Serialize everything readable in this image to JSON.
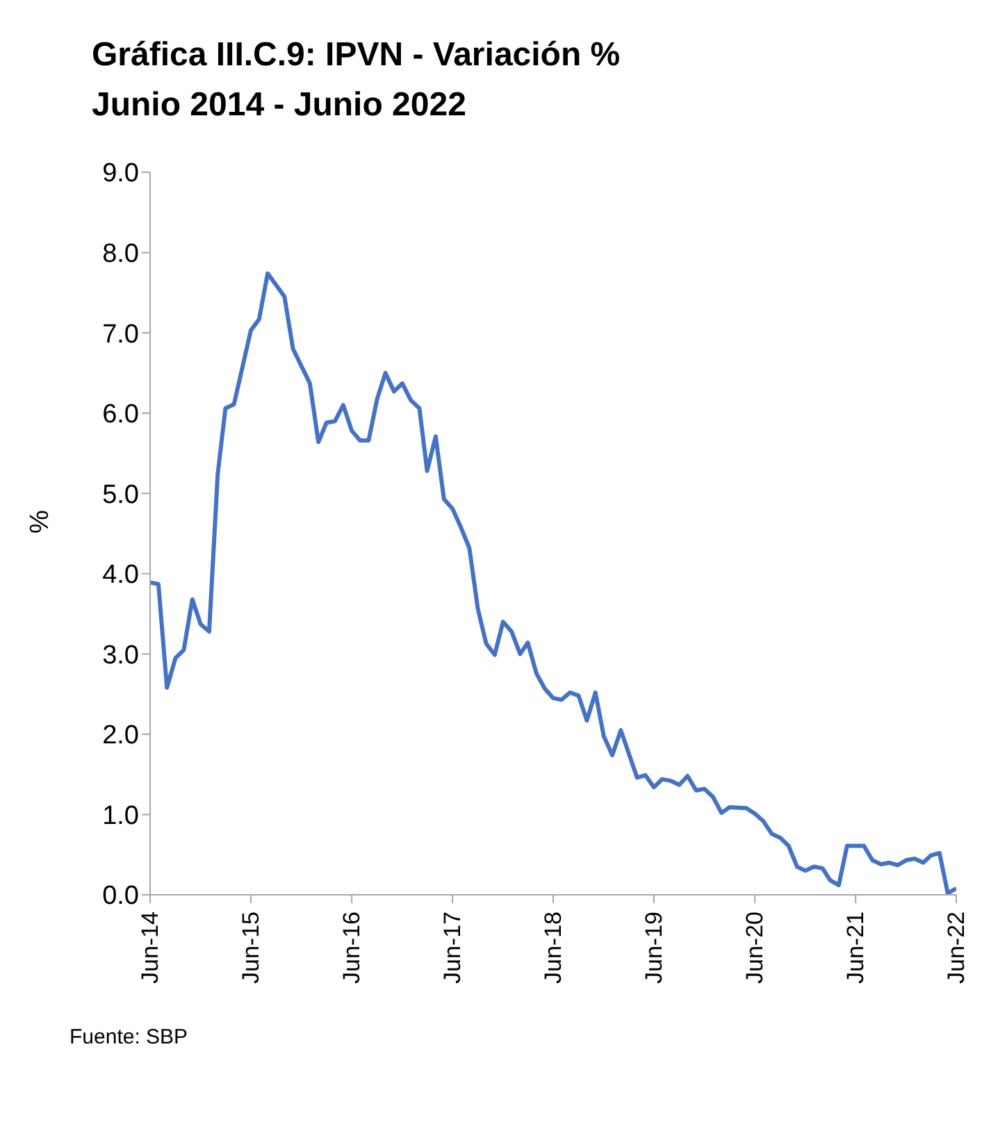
{
  "chart_data": {
    "type": "line",
    "title": "Gráfica III.C.9:  IPVN - Variación %",
    "subtitle": "Junio 2014  - Junio 2022",
    "ylabel": "%",
    "x": [
      "2014-06",
      "2014-07",
      "2014-08",
      "2014-09",
      "2014-10",
      "2014-11",
      "2014-12",
      "2015-01",
      "2015-02",
      "2015-03",
      "2015-04",
      "2015-06",
      "2015-07",
      "2015-08",
      "2015-10",
      "2015-11",
      "2016-01",
      "2016-02",
      "2016-03",
      "2016-04",
      "2016-05",
      "2016-06",
      "2016-07",
      "2016-08",
      "2016-09",
      "2016-10",
      "2016-11",
      "2016-12",
      "2017-01",
      "2017-02",
      "2017-03",
      "2017-04",
      "2017-05",
      "2017-06",
      "2017-07",
      "2017-08",
      "2017-09",
      "2017-10",
      "2017-11",
      "2017-12",
      "2018-01",
      "2018-02",
      "2018-03",
      "2018-04",
      "2018-05",
      "2018-06",
      "2018-07",
      "2018-08",
      "2018-09",
      "2018-10",
      "2018-11",
      "2018-12",
      "2019-01",
      "2019-02",
      "2019-04",
      "2019-05",
      "2019-06",
      "2019-07",
      "2019-08",
      "2019-09",
      "2019-10",
      "2019-11",
      "2019-12",
      "2020-01",
      "2020-02",
      "2020-03",
      "2020-05",
      "2020-06",
      "2020-07",
      "2020-08",
      "2020-09",
      "2020-10",
      "2020-11",
      "2020-12",
      "2021-01",
      "2021-02",
      "2021-03",
      "2021-04",
      "2021-05",
      "2021-06",
      "2021-07",
      "2021-08",
      "2021-09",
      "2021-10",
      "2021-11",
      "2021-12",
      "2022-01",
      "2022-02",
      "2022-03",
      "2022-04",
      "2022-05",
      "2022-06"
    ],
    "series": [
      {
        "color": "#4472c4",
        "values": [
          3.89,
          3.87,
          2.58,
          2.95,
          3.05,
          3.68,
          3.37,
          3.28,
          5.24,
          6.06,
          6.11,
          7.03,
          7.17,
          7.74,
          7.45,
          6.8,
          6.37,
          5.64,
          5.88,
          5.9,
          6.1,
          5.78,
          5.66,
          5.66,
          6.18,
          6.5,
          6.27,
          6.37,
          6.16,
          6.06,
          5.28,
          5.71,
          4.93,
          4.81,
          4.58,
          4.32,
          3.56,
          3.13,
          2.99,
          3.4,
          3.28,
          3.0,
          3.14,
          2.76,
          2.57,
          2.45,
          2.43,
          2.52,
          2.48,
          2.17,
          2.52,
          1.98,
          1.74,
          2.05,
          1.46,
          1.49,
          1.34,
          1.44,
          1.42,
          1.37,
          1.48,
          1.3,
          1.32,
          1.22,
          1.02,
          1.09,
          1.08,
          1.01,
          0.92,
          0.76,
          0.71,
          0.61,
          0.35,
          0.3,
          0.35,
          0.33,
          0.18,
          0.12,
          0.61,
          0.61,
          0.61,
          0.43,
          0.38,
          0.4,
          0.37,
          0.43,
          0.45,
          0.4,
          0.49,
          0.52,
          0.02,
          0.08
        ]
      }
    ],
    "xlim": [
      "2014-06",
      "2022-06"
    ],
    "xticks": [
      {
        "value": "2014-06",
        "label": "Jun-14"
      },
      {
        "value": "2015-06",
        "label": "Jun-15"
      },
      {
        "value": "2016-06",
        "label": "Jun-16"
      },
      {
        "value": "2017-06",
        "label": "Jun-17"
      },
      {
        "value": "2018-06",
        "label": "Jun-18"
      },
      {
        "value": "2019-06",
        "label": "Jun-19"
      },
      {
        "value": "2020-06",
        "label": "Jun-20"
      },
      {
        "value": "2021-06",
        "label": "Jun-21"
      },
      {
        "value": "2022-06",
        "label": "Jun-22"
      }
    ],
    "ylim": [
      0,
      9
    ],
    "yticks": [
      {
        "value": 0,
        "label": "0.0"
      },
      {
        "value": 1,
        "label": "1.0"
      },
      {
        "value": 2,
        "label": "2.0"
      },
      {
        "value": 3,
        "label": "3.0"
      },
      {
        "value": 4,
        "label": "4.0"
      },
      {
        "value": 5,
        "label": "5.0"
      },
      {
        "value": 6,
        "label": "6.0"
      },
      {
        "value": 7,
        "label": "7.0"
      },
      {
        "value": 8,
        "label": "8.0"
      },
      {
        "value": 9,
        "label": "9.0"
      }
    ],
    "grid": false,
    "legend": false,
    "marker": "none",
    "line_style": "solid",
    "annotations": [
      "Fuente: SBP"
    ]
  }
}
